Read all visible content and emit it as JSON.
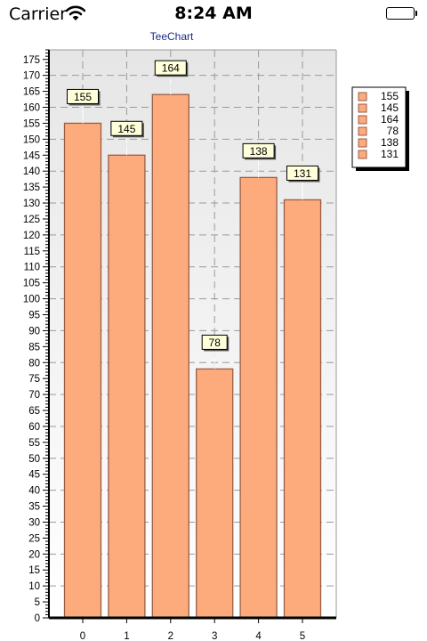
{
  "status_bar": {
    "carrier": "Carrier",
    "time": "8:24 AM",
    "wifi_icon": "wifi-icon",
    "battery_icon": "battery-icon"
  },
  "chart_data": {
    "type": "bar",
    "title": "TeeChart",
    "categories": [
      "0",
      "1",
      "2",
      "3",
      "4",
      "5"
    ],
    "values": [
      155,
      145,
      164,
      78,
      138,
      131
    ],
    "xlabel": "",
    "ylabel": "",
    "ylim": [
      0,
      178
    ],
    "ytick_step": 5,
    "grid": true,
    "grid_style": "dashed",
    "legend": {
      "position": "right",
      "entries": [
        "155",
        "145",
        "164",
        "78",
        "138",
        "131"
      ]
    },
    "data_labels": true,
    "colors": {
      "bar_fill": "#FDAB7C",
      "bar_stroke": "#9A5E45",
      "label_fill": "#FFFFDA",
      "title_color": "#1A2A8A",
      "grid_color": "#9A9A9A",
      "legend_shadow": "#000000"
    }
  }
}
